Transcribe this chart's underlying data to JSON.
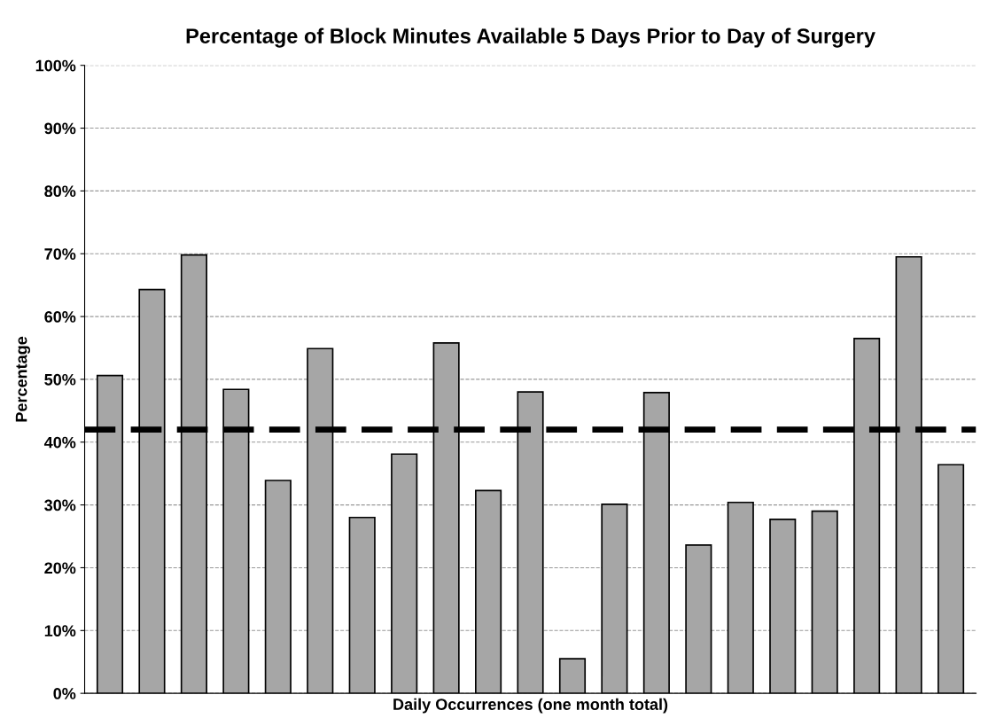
{
  "chart_data": {
    "type": "bar",
    "title": "Percentage of Block Minutes Available 5 Days Prior to Day of Surgery",
    "xlabel": "Daily Occurrences (one month total)",
    "ylabel": "Percentage",
    "categories": [
      null,
      null,
      null,
      null,
      null,
      null,
      null,
      null,
      null,
      null,
      null,
      null,
      null,
      null,
      null,
      null,
      null,
      null,
      null,
      null,
      null
    ],
    "values": [
      50.6,
      64.3,
      69.8,
      48.4,
      33.9,
      54.9,
      28.0,
      38.1,
      55.8,
      32.3,
      48.0,
      5.5,
      30.1,
      47.9,
      23.6,
      30.4,
      27.7,
      29.0,
      56.5,
      69.5,
      36.4
    ],
    "color": "#a6a6a6",
    "ylim": [
      0,
      100
    ],
    "yticks": [
      {
        "value": 0,
        "label": "0%"
      },
      {
        "value": 10,
        "label": "10%"
      },
      {
        "value": 20,
        "label": "20%"
      },
      {
        "value": 30,
        "label": "30%"
      },
      {
        "value": 40,
        "label": "40%"
      },
      {
        "value": 50,
        "label": "50%"
      },
      {
        "value": 60,
        "label": "60%"
      },
      {
        "value": 70,
        "label": "70%"
      },
      {
        "value": 80,
        "label": "80%"
      },
      {
        "value": 90,
        "label": "90%"
      },
      {
        "value": 100,
        "label": "100%"
      }
    ],
    "grid": "y",
    "tick_labels": "y",
    "ref_lines": [
      {
        "axis": "y",
        "value": 42,
        "color": "#000000",
        "line_style": "dashed"
      }
    ]
  }
}
